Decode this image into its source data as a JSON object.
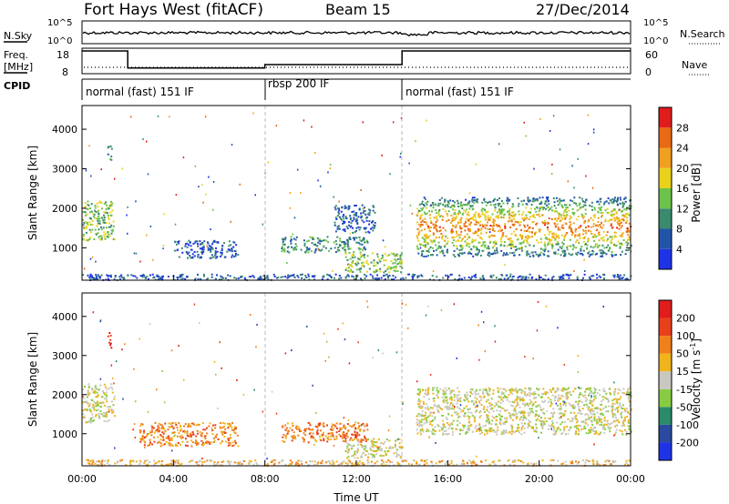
{
  "header": {
    "station": "Fort Hays West (fitACF)",
    "beam": "Beam 15",
    "date": "27/Dec/2014"
  },
  "noise_panel": {
    "left_label": "N.Sky",
    "right_label": "N.Search",
    "left_ticks": [
      "10^5",
      "10^0"
    ],
    "right_ticks": [
      "10^5",
      "10^0"
    ]
  },
  "freq_panel": {
    "left_label_1": "Freq.",
    "left_label_2": "[MHz]",
    "right_label": "Nave",
    "left_ticks": [
      "18",
      "8"
    ],
    "right_ticks": [
      "60",
      "0"
    ],
    "freq_mhz": [
      {
        "t0": 0.0,
        "t1": 2.0,
        "value": 18
      },
      {
        "t0": 2.0,
        "t1": 8.0,
        "value": 10.5
      },
      {
        "t0": 8.0,
        "t1": 14.0,
        "value": 12
      },
      {
        "t0": 14.0,
        "t1": 24.0,
        "value": 18
      }
    ]
  },
  "cpid": {
    "label": "CPID",
    "segments": [
      {
        "t0": 0,
        "t1": 8,
        "text": "normal (fast) 151 IF"
      },
      {
        "t0": 8,
        "t1": 14,
        "text": "rbsp 200 IF"
      },
      {
        "t0": 14,
        "t1": 24,
        "text": "normal (fast) 151 IF"
      }
    ]
  },
  "power_panel": {
    "ylabel": "Slant Range [km]",
    "yticks": [
      "1000",
      "2000",
      "3000",
      "4000"
    ],
    "colorbar_label": "Power [dB]",
    "colorbar_ticks": [
      "4",
      "8",
      "12",
      "16",
      "20",
      "24",
      "28"
    ]
  },
  "velocity_panel": {
    "ylabel": "Slant Range [km]",
    "yticks": [
      "1000",
      "2000",
      "3000",
      "4000"
    ],
    "colorbar_label": "Velocity [m s",
    "colorbar_label_sup": "-1",
    "colorbar_label_end": "]",
    "colorbar_ticks": [
      "200",
      "100",
      "50",
      "15",
      "-15",
      "-50",
      "-100",
      "-200"
    ]
  },
  "xaxis": {
    "label": "Time UT",
    "ticks": [
      "00:00",
      "04:00",
      "08:00",
      "12:00",
      "16:00",
      "20:00",
      "00:00"
    ]
  },
  "chart_data": {
    "type": "heatmap",
    "x_unit": "hours UT",
    "xlim": [
      0,
      24
    ],
    "ylim_km": [
      180,
      4600
    ],
    "power_colors": [
      "#1f33e6",
      "#2255aa",
      "#3a8a6e",
      "#6cc24a",
      "#e8d21c",
      "#f0a020",
      "#e86a14",
      "#e01c1c"
    ],
    "velocity_colors": [
      "#e01c1c",
      "#e8401c",
      "#f0801c",
      "#f0b41c",
      "#c8c8c0",
      "#88cc44",
      "#2a8a6a",
      "#2a4aa0",
      "#1f33e6"
    ],
    "power_regions": [
      {
        "t": [
          0.0,
          1.4
        ],
        "range_km": [
          1200,
          2200
        ],
        "level": 3
      },
      {
        "t": [
          1.1,
          1.3
        ],
        "range_km": [
          3200,
          3600
        ],
        "level": 2
      },
      {
        "t": [
          4.0,
          6.8
        ],
        "range_km": [
          750,
          1200
        ],
        "level": 1
      },
      {
        "t": [
          8.7,
          12.5
        ],
        "range_km": [
          900,
          1300
        ],
        "level": 2
      },
      {
        "t": [
          11.0,
          12.8
        ],
        "range_km": [
          1400,
          2100
        ],
        "level": 1
      },
      {
        "t": [
          11.5,
          14.0
        ],
        "range_km": [
          400,
          900
        ],
        "level": 3
      },
      {
        "t": [
          14.6,
          24.0
        ],
        "range_km": [
          800,
          2300
        ],
        "level": 4
      },
      {
        "t": [
          0.0,
          24.0
        ],
        "range_km": [
          200,
          350
        ],
        "level": 1
      }
    ],
    "velocity_regions": [
      {
        "t": [
          0.0,
          1.4
        ],
        "range_km": [
          1300,
          2300
        ],
        "level": 4
      },
      {
        "t": [
          1.1,
          1.3
        ],
        "range_km": [
          3200,
          3600
        ],
        "level": 0
      },
      {
        "t": [
          2.5,
          6.8
        ],
        "range_km": [
          700,
          1300
        ],
        "level": 2
      },
      {
        "t": [
          8.7,
          12.5
        ],
        "range_km": [
          800,
          1300
        ],
        "level": 2
      },
      {
        "t": [
          11.5,
          14.0
        ],
        "range_km": [
          400,
          900
        ],
        "level": 4
      },
      {
        "t": [
          14.6,
          24.0
        ],
        "range_km": [
          1000,
          2200
        ],
        "level": 4
      },
      {
        "t": [
          0.0,
          24.0
        ],
        "range_km": [
          200,
          350
        ],
        "level": 3
      }
    ]
  }
}
